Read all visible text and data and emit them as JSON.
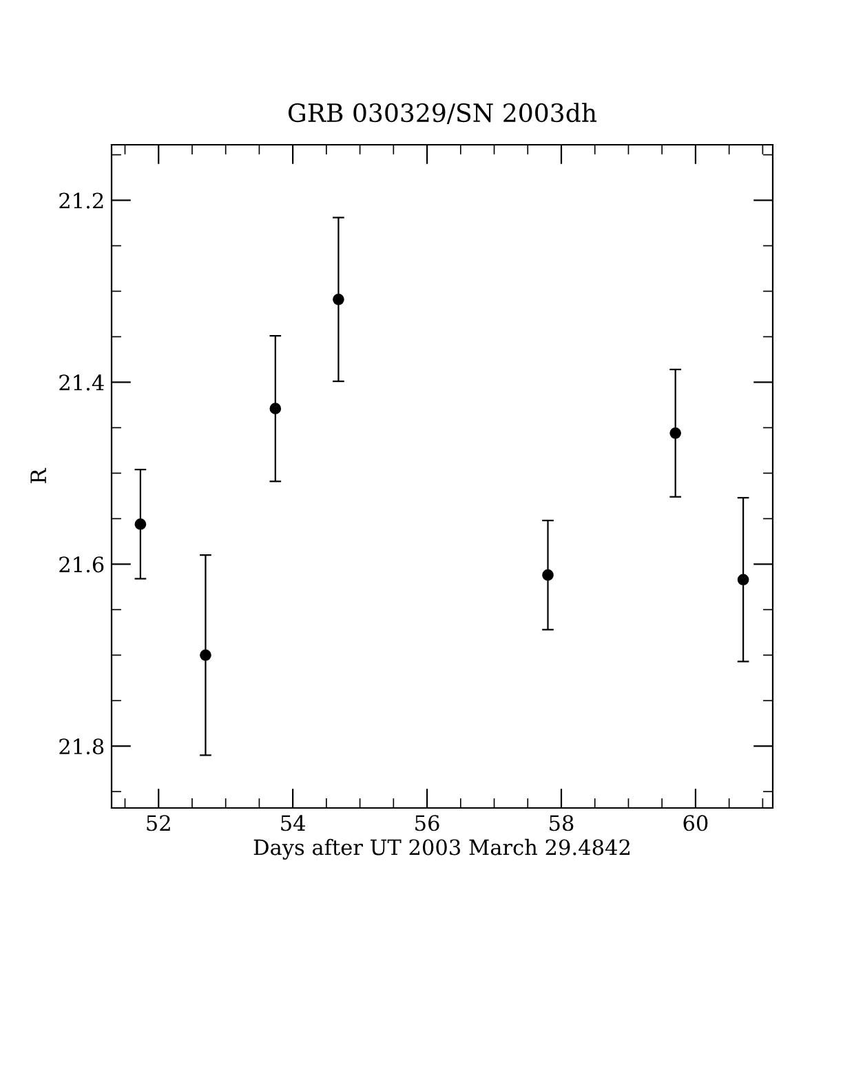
{
  "chart_data": {
    "type": "scatter",
    "title": "GRB 030329/SN 2003dh",
    "xlabel": "Days after UT 2003 March 29.4842",
    "ylabel": "R",
    "x": [
      51.73,
      52.7,
      53.74,
      54.68,
      57.8,
      59.7,
      60.71
    ],
    "values": [
      21.556,
      21.7,
      21.429,
      21.309,
      21.612,
      21.456,
      21.617
    ],
    "errors": [
      0.06,
      0.11,
      0.08,
      0.09,
      0.06,
      0.07,
      0.09
    ],
    "color": "#000000",
    "marker": "circle",
    "grid": false,
    "xlim": [
      51.3,
      61.15
    ],
    "ylim": [
      21.868,
      21.139
    ],
    "xticks": [
      52,
      54,
      56,
      58,
      60
    ],
    "yticks": [
      21.2,
      21.4,
      21.6,
      21.8
    ]
  }
}
